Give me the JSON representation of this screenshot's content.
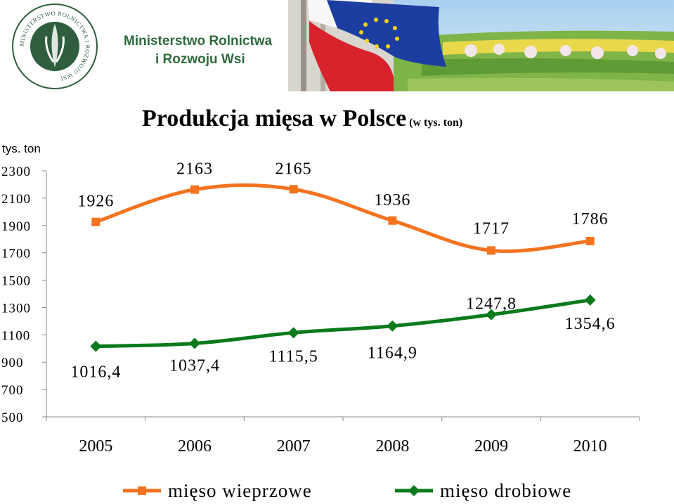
{
  "header": {
    "ministry_line1": "Ministerstwo Rolnictwa",
    "ministry_line2": "i Rozwoju Wsi",
    "seal_text": "MINISTERSTWO ROLNICTWA I ROZWOJU WSI"
  },
  "chart_data": {
    "type": "line",
    "title": "Produkcja mięsa w Polsce",
    "subtitle": "(w tys. ton)",
    "ylabel": "tys. ton",
    "xlabel": "",
    "categories": [
      "2005",
      "2006",
      "2007",
      "2008",
      "2009",
      "2010"
    ],
    "ylim": [
      500,
      2300
    ],
    "yticks": [
      "500",
      "700",
      "900",
      "1100",
      "1300",
      "1500",
      "1700",
      "1900",
      "2100",
      "2300"
    ],
    "grid": false,
    "legend": "bottom",
    "series": [
      {
        "name": "mięso wieprzowe",
        "values": [
          1926,
          2163,
          2165,
          1936,
          1717,
          1786
        ],
        "labels": [
          "1926",
          "2163",
          "2165",
          "1936",
          "1717",
          "1786"
        ],
        "color": "#f4731f",
        "marker": "square"
      },
      {
        "name": "mięso drobiowe",
        "values": [
          1016.4,
          1037.4,
          1115.5,
          1164.9,
          1247.8,
          1354.6
        ],
        "labels": [
          "1016,4",
          "1037,4",
          "1115,5",
          "1164,9",
          "1247,8",
          "1354,6"
        ],
        "color": "#0a7a1c",
        "marker": "diamond"
      }
    ]
  }
}
